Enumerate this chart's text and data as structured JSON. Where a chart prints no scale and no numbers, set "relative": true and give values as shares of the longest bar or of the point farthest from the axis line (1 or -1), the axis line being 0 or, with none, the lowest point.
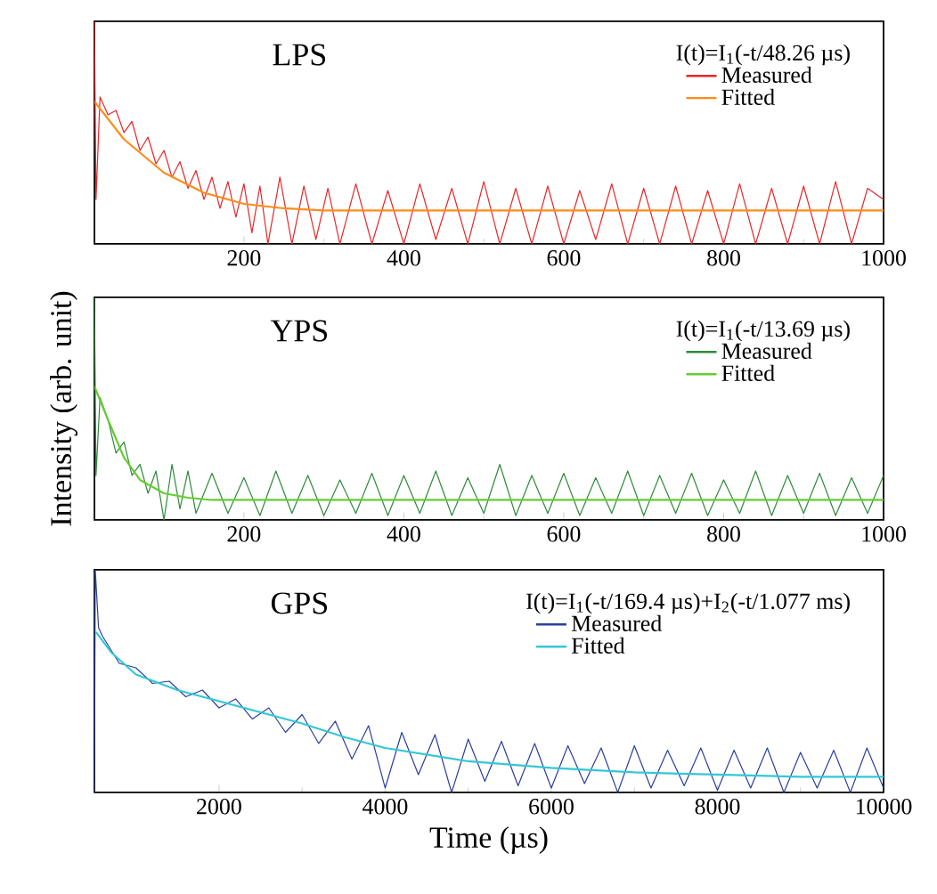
{
  "chart_data": [
    {
      "type": "line",
      "title": "LPS",
      "relative": true,
      "xlim": [
        13,
        1000
      ],
      "xticks": [
        200,
        400,
        600,
        800,
        1000
      ],
      "legend": "top right",
      "legend_title": "I(t)=I$_{1}$(-t/48.26 µs)",
      "series": [
        {
          "name": "Measured",
          "color": "#e8262a",
          "x": [
            13,
            15,
            20,
            30,
            40,
            50,
            60,
            70,
            80,
            90,
            100,
            110,
            120,
            130,
            140,
            150,
            160,
            170,
            180,
            190,
            200,
            210,
            220,
            230,
            245,
            260,
            275,
            290,
            305,
            320,
            340,
            360,
            380,
            400,
            420,
            440,
            460,
            480,
            500,
            520,
            540,
            560,
            580,
            600,
            620,
            640,
            660,
            680,
            700,
            720,
            740,
            760,
            780,
            800,
            820,
            840,
            860,
            880,
            900,
            920,
            940,
            960,
            980,
            1000
          ],
          "values": [
            1.0,
            0.2,
            0.66,
            0.58,
            0.6,
            0.5,
            0.55,
            0.42,
            0.48,
            0.36,
            0.42,
            0.3,
            0.37,
            0.25,
            0.33,
            0.2,
            0.3,
            0.16,
            0.28,
            0.12,
            0.27,
            0.05,
            0.26,
            0,
            0.3,
            0,
            0.26,
            0.02,
            0.25,
            0,
            0.27,
            0,
            0.24,
            0,
            0.27,
            0.02,
            0.25,
            0,
            0.28,
            0,
            0.25,
            0,
            0.26,
            0,
            0.24,
            0.02,
            0.27,
            0,
            0.25,
            0,
            0.26,
            0,
            0.24,
            0,
            0.27,
            0,
            0.25,
            0,
            0.26,
            0,
            0.28,
            0,
            0.25,
            0.2
          ]
        },
        {
          "name": "Fitted",
          "color": "#ff8c1a",
          "x": [
            13,
            50,
            100,
            150,
            200,
            250,
            300,
            400,
            600,
            800,
            1000
          ],
          "values": [
            0.64,
            0.47,
            0.32,
            0.23,
            0.18,
            0.16,
            0.15,
            0.15,
            0.15,
            0.15,
            0.15
          ]
        }
      ]
    },
    {
      "type": "line",
      "title": "YPS",
      "ylabel": "Intensity (arb. unit)",
      "relative": true,
      "xlim": [
        13,
        1000
      ],
      "xticks": [
        200,
        400,
        600,
        800,
        1000
      ],
      "legend": "top right",
      "legend_title": "I(t)=I$_{1}$(-t/13.69 µs)",
      "series": [
        {
          "name": "Measured",
          "color": "#2f8a3a",
          "x": [
            13,
            15,
            20,
            30,
            40,
            50,
            60,
            70,
            80,
            90,
            100,
            110,
            120,
            130,
            140,
            160,
            180,
            200,
            220,
            240,
            260,
            280,
            300,
            320,
            340,
            360,
            380,
            400,
            420,
            440,
            460,
            480,
            500,
            520,
            540,
            560,
            580,
            600,
            620,
            640,
            660,
            680,
            700,
            720,
            740,
            760,
            780,
            800,
            820,
            840,
            860,
            880,
            900,
            920,
            940,
            960,
            980,
            1000
          ],
          "values": [
            1.0,
            0.2,
            0.55,
            0.45,
            0.3,
            0.35,
            0.2,
            0.25,
            0.12,
            0.22,
            0,
            0.25,
            0.05,
            0.22,
            0.03,
            0.21,
            0.03,
            0.19,
            0.02,
            0.22,
            0.03,
            0.2,
            0.02,
            0.18,
            0.03,
            0.21,
            0.02,
            0.2,
            0.03,
            0.22,
            0.02,
            0.19,
            0.03,
            0.25,
            0.02,
            0.2,
            0.03,
            0.21,
            0.02,
            0.19,
            0.03,
            0.22,
            0.02,
            0.2,
            0.03,
            0.21,
            0.02,
            0.18,
            0.03,
            0.22,
            0.02,
            0.2,
            0.03,
            0.21,
            0.02,
            0.19,
            0.03,
            0.2
          ]
        },
        {
          "name": "Fitted",
          "color": "#66cc33",
          "x": [
            13,
            30,
            50,
            70,
            100,
            130,
            160,
            400,
            700,
            1000
          ],
          "values": [
            0.6,
            0.45,
            0.28,
            0.18,
            0.12,
            0.1,
            0.09,
            0.09,
            0.09,
            0.09
          ]
        }
      ]
    },
    {
      "type": "line",
      "title": "GPS",
      "xlabel": "Time (µs)",
      "relative": true,
      "xlim": [
        500,
        10000
      ],
      "xticks": [
        2000,
        4000,
        6000,
        8000,
        10000
      ],
      "legend": "top right",
      "legend_title": "I(t)=I$_{1}$(-t/169.4 µs)+I$_{2}$(-t/1.077 ms)",
      "series": [
        {
          "name": "Measured",
          "color": "#2a3f9e",
          "x": [
            500,
            510,
            550,
            600,
            800,
            1000,
            1200,
            1400,
            1600,
            1800,
            2000,
            2200,
            2400,
            2600,
            2800,
            3000,
            3200,
            3400,
            3600,
            3800,
            4000,
            4200,
            4400,
            4600,
            4800,
            5000,
            5200,
            5400,
            5600,
            5800,
            6000,
            6200,
            6400,
            6600,
            6800,
            7000,
            7200,
            7400,
            7600,
            7800,
            8000,
            8200,
            8400,
            8600,
            8800,
            9000,
            9200,
            9400,
            9600,
            9800,
            10000
          ],
          "values": [
            0,
            1.0,
            0.74,
            0.7,
            0.58,
            0.56,
            0.49,
            0.5,
            0.43,
            0.46,
            0.38,
            0.42,
            0.33,
            0.38,
            0.27,
            0.35,
            0.22,
            0.32,
            0.15,
            0.3,
            0.02,
            0.27,
            0.08,
            0.26,
            0,
            0.24,
            0.05,
            0.23,
            0.03,
            0.22,
            0.02,
            0.21,
            0.04,
            0.2,
            0,
            0.21,
            0.02,
            0.19,
            0.03,
            0.2,
            0.01,
            0.19,
            0.02,
            0.2,
            0,
            0.18,
            0.02,
            0.19,
            0,
            0.2,
            0.02
          ]
        },
        {
          "name": "Fitted",
          "color": "#33c7d6",
          "x": [
            520,
            700,
            1000,
            1500,
            2000,
            2500,
            3000,
            3500,
            4000,
            4500,
            5000,
            6000,
            7000,
            8000,
            9000,
            10000
          ],
          "values": [
            0.72,
            0.63,
            0.53,
            0.46,
            0.41,
            0.36,
            0.31,
            0.25,
            0.2,
            0.17,
            0.14,
            0.11,
            0.09,
            0.08,
            0.07,
            0.07
          ]
        }
      ]
    }
  ]
}
